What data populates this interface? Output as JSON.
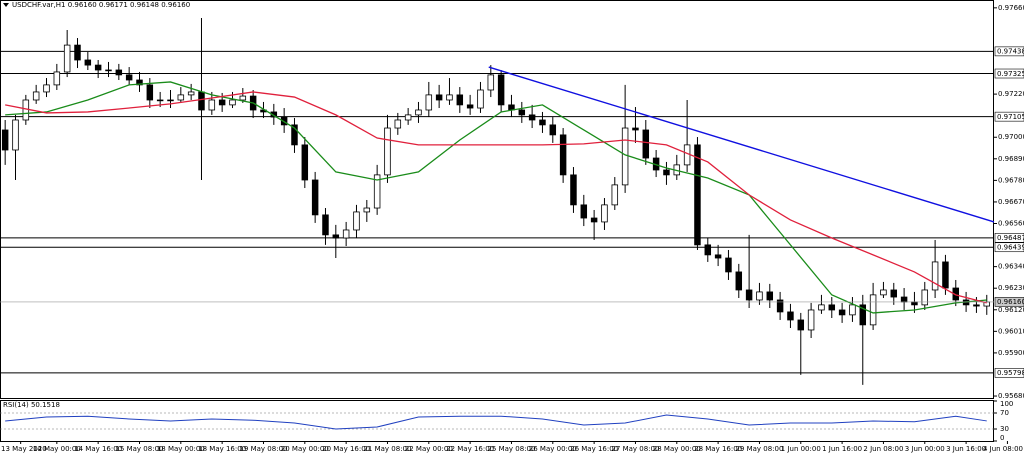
{
  "chart_data": {
    "type": "candlestick",
    "title": "USDCHF.var,H1  0.96160 0.96171 0.96148 0.96160",
    "xlim": [
      -0.5,
      95.7
    ],
    "xticks": [
      {
        "value": 1.5,
        "label": "13 May 2020"
      },
      {
        "value": 5,
        "label": "14 May 00:00"
      },
      {
        "value": 9,
        "label": "14 May 16:00"
      },
      {
        "value": 13,
        "label": "15 May 08:00"
      },
      {
        "value": 17,
        "label": "18 May 00:00"
      },
      {
        "value": 21,
        "label": "18 May 16:00"
      },
      {
        "value": 25,
        "label": "19 May 08:00"
      },
      {
        "value": 29,
        "label": "20 May 00:00"
      },
      {
        "value": 33,
        "label": "20 May 16:00"
      },
      {
        "value": 37,
        "label": "21 May 08:00"
      },
      {
        "value": 41,
        "label": "22 May 00:00"
      },
      {
        "value": 45,
        "label": "22 May 16:00"
      },
      {
        "value": 49,
        "label": "25 May 08:00"
      },
      {
        "value": 53,
        "label": "26 May 00:00"
      },
      {
        "value": 57,
        "label": "26 May 16:00"
      },
      {
        "value": 61,
        "label": "27 May 08:00"
      },
      {
        "value": 65,
        "label": "28 May 00:00"
      },
      {
        "value": 69,
        "label": "28 May 16:00"
      },
      {
        "value": 73,
        "label": "29 May 08:00"
      },
      {
        "value": 77,
        "label": "1 Jun 00:00"
      },
      {
        "value": 81,
        "label": "1 Jun 16:00"
      },
      {
        "value": 85,
        "label": "2 Jun 08:00"
      },
      {
        "value": 89,
        "label": "3 Jun 00:00"
      },
      {
        "value": 93,
        "label": "3 Jun 16:00"
      },
      {
        "value": 97,
        "label": "4 Jun 08:00"
      }
    ],
    "ylim": [
      0.9567,
      0.977
    ],
    "yticks": [
      {
        "value": 0.9766,
        "label": "0.97660"
      },
      {
        "value": 0.9722,
        "label": "0.97220"
      },
      {
        "value": 0.97,
        "label": "0.97000"
      },
      {
        "value": 0.9689,
        "label": "0.96890"
      },
      {
        "value": 0.9678,
        "label": "0.96780"
      },
      {
        "value": 0.9667,
        "label": "0.96670"
      },
      {
        "value": 0.9656,
        "label": "0.96560"
      },
      {
        "value": 0.9634,
        "label": "0.96340"
      },
      {
        "value": 0.9623,
        "label": "0.96230"
      },
      {
        "value": 0.9612,
        "label": "0.96120"
      },
      {
        "value": 0.9601,
        "label": "0.96010"
      },
      {
        "value": 0.959,
        "label": "0.95900"
      },
      {
        "value": 0.9568,
        "label": "0.95680"
      }
    ],
    "up_color": "#ffffff",
    "down_color": "#000000",
    "open": [
      0.97037,
      0.96935,
      0.97088,
      0.9719,
      0.97231,
      0.97267,
      0.97333,
      0.9747,
      0.97394,
      0.97368,
      0.97343,
      0.97343,
      0.97318,
      0.97292,
      0.97267,
      0.9719,
      0.9719,
      0.9719,
      0.97216,
      0.97231,
      0.97139,
      0.9719,
      0.97165,
      0.9719,
      0.9721,
      0.97139,
      0.97129,
      0.97103,
      0.97063,
      0.96961,
      0.96782,
      0.96604,
      0.96502,
      0.96486,
      0.96527,
      0.96619,
      0.96639,
      0.96808,
      0.97047,
      0.97088,
      0.97114,
      0.97139,
      0.97216,
      0.9719,
      0.97216,
      0.97165,
      0.97149,
      0.97241,
      0.97318,
      0.97165,
      0.97139,
      0.97114,
      0.97088,
      0.97063,
      0.97012,
      0.96808,
      0.96655,
      0.96588,
      0.96568,
      0.96655,
      0.96757,
      0.97047,
      0.97037,
      0.96894,
      0.96833,
      0.96808,
      0.96859,
      0.96961,
      0.96451,
      0.964,
      0.96384,
      0.96313,
      0.96221,
      0.9617,
      0.96211,
      0.9617,
      0.96109,
      0.96068,
      0.96017,
      0.96119,
      0.96145,
      0.96119,
      0.96094,
      0.96145,
      0.96043,
      0.96196,
      0.96221,
      0.96185,
      0.9616,
      0.96145,
      0.96221,
      0.96364,
      0.96231,
      0.9617,
      0.96145,
      0.96139
    ],
    "high": [
      0.97088,
      0.97114,
      0.97216,
      0.97267,
      0.97302,
      0.97374,
      0.97547,
      0.97506,
      0.97435,
      0.97394,
      0.97384,
      0.97374,
      0.97358,
      0.97333,
      0.97302,
      0.97231,
      0.97241,
      0.97256,
      0.97272,
      0.97608,
      0.97231,
      0.97226,
      0.97231,
      0.97251,
      0.97241,
      0.9718,
      0.9717,
      0.97149,
      0.97098,
      0.97001,
      0.96823,
      0.96639,
      0.96553,
      0.96568,
      0.96655,
      0.9668,
      0.96859,
      0.97114,
      0.97124,
      0.97149,
      0.9718,
      0.97282,
      0.97267,
      0.97302,
      0.97256,
      0.97216,
      0.97282,
      0.97368,
      0.97343,
      0.97216,
      0.9718,
      0.97165,
      0.97129,
      0.97103,
      0.97047,
      0.96848,
      0.96706,
      0.96629,
      0.9669,
      0.96797,
      0.97267,
      0.97154,
      0.97088,
      0.96935,
      0.96874,
      0.9691,
      0.9719,
      0.97001,
      0.96486,
      0.96451,
      0.96425,
      0.96354,
      0.96502,
      0.96257,
      0.96252,
      0.96211,
      0.9615,
      0.96104,
      0.96155,
      0.96196,
      0.96185,
      0.96155,
      0.96185,
      0.96196,
      0.96257,
      0.96262,
      0.96257,
      0.96231,
      0.96211,
      0.96262,
      0.96476,
      0.964,
      0.96272,
      0.96211,
      0.96185,
      0.96196
    ],
    "low": [
      0.96859,
      0.96782,
      0.97063,
      0.9717,
      0.97205,
      0.97241,
      0.97307,
      0.97353,
      0.97343,
      0.97302,
      0.97307,
      0.97292,
      0.97267,
      0.97231,
      0.97149,
      0.97154,
      0.97149,
      0.97175,
      0.9719,
      0.96782,
      0.97114,
      0.97129,
      0.97149,
      0.97175,
      0.97098,
      0.97098,
      0.97063,
      0.97022,
      0.9692,
      0.96741,
      0.96563,
      0.96451,
      0.96384,
      0.96445,
      0.96486,
      0.96568,
      0.96604,
      0.96767,
      0.97012,
      0.97063,
      0.97073,
      0.97103,
      0.97149,
      0.97165,
      0.97124,
      0.97114,
      0.97124,
      0.97205,
      0.97129,
      0.97103,
      0.97073,
      0.97047,
      0.97022,
      0.96971,
      0.96767,
      0.96614,
      0.96547,
      0.96476,
      0.96527,
      0.96629,
      0.96716,
      0.96971,
      0.96859,
      0.96797,
      0.96757,
      0.96782,
      0.96823,
      0.96425,
      0.96364,
      0.96343,
      0.96272,
      0.9618,
      0.96129,
      0.96145,
      0.96129,
      0.96068,
      0.96027,
      0.95788,
      0.95976,
      0.96099,
      0.96078,
      0.96053,
      0.96058,
      0.95737,
      0.96017,
      0.9618,
      0.96145,
      0.96119,
      0.96104,
      0.96119,
      0.9618,
      0.96196,
      0.96139,
      0.96109,
      0.96104,
      0.96094
    ],
    "close": [
      0.96935,
      0.97088,
      0.9719,
      0.97231,
      0.97267,
      0.97333,
      0.9747,
      0.97394,
      0.97368,
      0.97343,
      0.97343,
      0.97318,
      0.97292,
      0.97267,
      0.9719,
      0.9719,
      0.9719,
      0.97216,
      0.97231,
      0.97139,
      0.9719,
      0.97165,
      0.9719,
      0.9721,
      0.97139,
      0.97129,
      0.97103,
      0.97063,
      0.96961,
      0.96782,
      0.96604,
      0.96502,
      0.96486,
      0.96527,
      0.96619,
      0.96639,
      0.96808,
      0.97047,
      0.97088,
      0.97114,
      0.97139,
      0.97216,
      0.9719,
      0.97216,
      0.97165,
      0.97149,
      0.97241,
      0.97318,
      0.97165,
      0.97139,
      0.97114,
      0.97088,
      0.97063,
      0.97012,
      0.96808,
      0.96655,
      0.96588,
      0.96568,
      0.96655,
      0.96757,
      0.97047,
      0.97037,
      0.96894,
      0.96833,
      0.96808,
      0.96859,
      0.96961,
      0.96451,
      0.964,
      0.96384,
      0.96313,
      0.96221,
      0.9617,
      0.96211,
      0.9617,
      0.96109,
      0.96068,
      0.96017,
      0.96119,
      0.96145,
      0.96119,
      0.96094,
      0.96145,
      0.96043,
      0.96196,
      0.96221,
      0.96185,
      0.9616,
      0.96145,
      0.96221,
      0.96364,
      0.96231,
      0.9617,
      0.96145,
      0.96139,
      0.9616
    ],
    "moving_averages": [
      {
        "color": "#1a8c1a",
        "x": [
          0,
          4,
          8,
          12,
          16,
          20,
          24,
          28,
          32,
          36,
          40,
          44,
          48,
          52,
          56,
          60,
          64,
          68,
          72,
          76,
          80,
          84,
          88,
          92,
          95
        ],
        "values": [
          0.97114,
          0.97129,
          0.9719,
          0.97267,
          0.97282,
          0.97216,
          0.97175,
          0.97047,
          0.96823,
          0.96782,
          0.96823,
          0.96986,
          0.97129,
          0.97165,
          0.97037,
          0.9691,
          0.96843,
          0.96792,
          0.96706,
          0.96451,
          0.96196,
          0.96104,
          0.96119,
          0.96155,
          0.9617
        ]
      },
      {
        "color": "#e0203c",
        "x": [
          0,
          4,
          8,
          12,
          16,
          20,
          24,
          28,
          32,
          36,
          40,
          44,
          48,
          52,
          56,
          60,
          64,
          68,
          72,
          76,
          80,
          84,
          88,
          92,
          95
        ],
        "values": [
          0.97165,
          0.97124,
          0.97129,
          0.97149,
          0.9717,
          0.972,
          0.97231,
          0.97205,
          0.97114,
          0.96996,
          0.96961,
          0.96961,
          0.96961,
          0.96961,
          0.96966,
          0.96986,
          0.96961,
          0.96874,
          0.96706,
          0.96578,
          0.96486,
          0.964,
          0.96313,
          0.96196,
          0.96155
        ]
      }
    ],
    "levels": [
      0.97438,
      0.97325,
      0.97105,
      0.96487,
      0.96439,
      0.95798
    ],
    "level_color": "#000000",
    "current_price": {
      "value": 0.9616,
      "label": "0.96160"
    },
    "trendline": {
      "color": "#1010e0",
      "x": [
        46.8,
        95.7
      ],
      "values": [
        0.97358,
        0.96568
      ]
    },
    "indicator": {
      "title": "RSI(14) 50.1518",
      "color": "#2040c0",
      "ylim": [
        0,
        100
      ],
      "yticks": [
        100,
        70,
        30,
        0
      ],
      "levels": [
        70,
        30
      ],
      "x": [
        0,
        4,
        8,
        12,
        16,
        20,
        24,
        28,
        32,
        36,
        40,
        44,
        48,
        52,
        56,
        60,
        64,
        68,
        72,
        76,
        80,
        84,
        88,
        92,
        95
      ],
      "values": [
        50,
        60,
        62,
        55,
        50,
        55,
        52,
        45,
        30,
        35,
        60,
        62,
        62,
        55,
        40,
        45,
        65,
        55,
        40,
        45,
        45,
        50,
        48,
        62,
        50.1518
      ]
    }
  }
}
